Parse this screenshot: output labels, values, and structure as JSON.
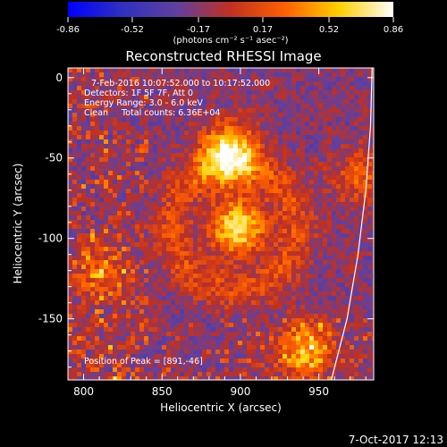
{
  "chart_data": {
    "type": "heatmap",
    "title": "Reconstructed RHESSI Image",
    "xlabel": "Heliocentric X (arcsec)",
    "ylabel": "Heliocentric Y (arcsec)",
    "xlim": [
      790,
      985
    ],
    "ylim": [
      -188,
      6
    ],
    "xticks": [
      800,
      850,
      900,
      950
    ],
    "yticks": [
      0,
      -50,
      -100,
      -150
    ],
    "colorbar": {
      "min": -0.86,
      "max": 0.86,
      "ticks": [
        -0.86,
        -0.52,
        -0.17,
        0.17,
        0.52,
        0.86
      ],
      "tick_labels": [
        "-0.86",
        "-0.52",
        "-0.17",
        "0.17",
        "0.52",
        "0.86"
      ],
      "unit_label": "(photons cm⁻² s⁻¹ asec⁻²)",
      "colormap": [
        "#0000ff",
        "#3030c0",
        "#6040a0",
        "#c03020",
        "#ff6000",
        "#ffd000",
        "#ffffff"
      ]
    },
    "info": {
      "time": "7-Feb-2016 10:07:52.000 to 10:17:52.000",
      "detectors": "Detectors: 1F 5F 7F, Att 0",
      "energy": "Energy Range: 3.0 - 6.0 keV",
      "clean": "Clean     Total counts: 6.36E+04"
    },
    "peak_label": "Position of Peak = [891,-46]",
    "peak": [
      891,
      -46
    ],
    "hot_sources": [
      {
        "x": 891,
        "y": -46,
        "intensity": 1.0
      },
      {
        "x": 897,
        "y": -92,
        "intensity": 0.9
      },
      {
        "x": 940,
        "y": -168,
        "intensity": 0.7
      },
      {
        "x": 810,
        "y": -120,
        "intensity": 0.45
      },
      {
        "x": 975,
        "y": -60,
        "intensity": 0.4
      }
    ],
    "limb_curve": [
      {
        "x": 984,
        "y": 6
      },
      {
        "x": 983,
        "y": -30
      },
      {
        "x": 980,
        "y": -70
      },
      {
        "x": 975,
        "y": -110
      },
      {
        "x": 968,
        "y": -150
      },
      {
        "x": 958,
        "y": -188
      }
    ]
  },
  "footer": {
    "timestamp": "7-Oct-2017 12:13"
  }
}
